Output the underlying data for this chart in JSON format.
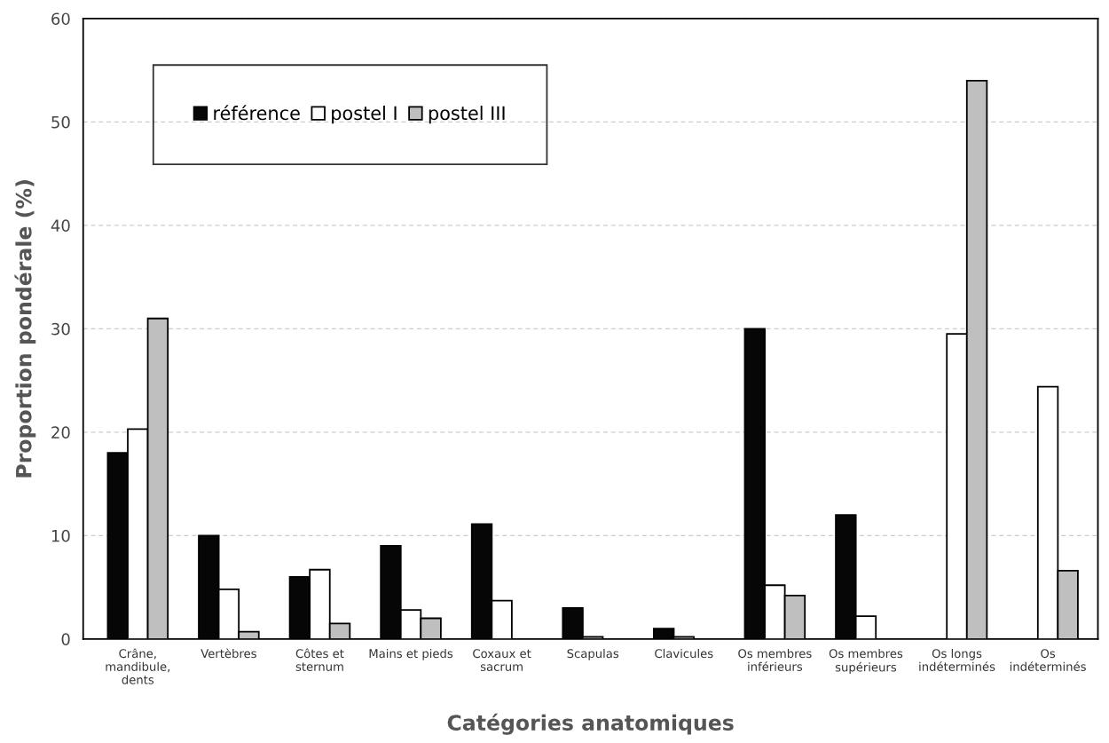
{
  "chart_data": {
    "type": "bar",
    "xlabel": "Catégories anatomiques",
    "ylabel": "Proportion pondérale (%)",
    "categories": [
      "Crâne,\nmandibule,\ndents",
      "Vertèbres",
      "Côtes et\nsternum",
      "Mains et pieds",
      "Coxaux et\nsacrum",
      "Scapulas",
      "Clavicules",
      "Os membres\ninférieurs",
      "Os membres\nsupérieurs",
      "Os longs\nindéterminés",
      "Os\nindéterminés"
    ],
    "series": [
      {
        "name": "référence",
        "color": "#060606",
        "values": [
          18,
          10,
          6,
          9,
          11.1,
          3,
          1,
          30,
          12,
          null,
          null
        ]
      },
      {
        "name": "postel I",
        "color": "#ffffff",
        "values": [
          20.3,
          4.8,
          6.7,
          2.8,
          3.7,
          0.2,
          0.2,
          5.2,
          2.2,
          29.5,
          24.4
        ]
      },
      {
        "name": "postel III",
        "color": "#bfbfbf",
        "values": [
          31,
          0.7,
          1.5,
          2,
          null,
          null,
          null,
          4.2,
          null,
          54,
          6.6
        ]
      }
    ],
    "ylim": [
      0,
      60
    ],
    "yticks": [
      0,
      10,
      20,
      30,
      40,
      50,
      60
    ],
    "grid": "y",
    "legend": "top left"
  }
}
